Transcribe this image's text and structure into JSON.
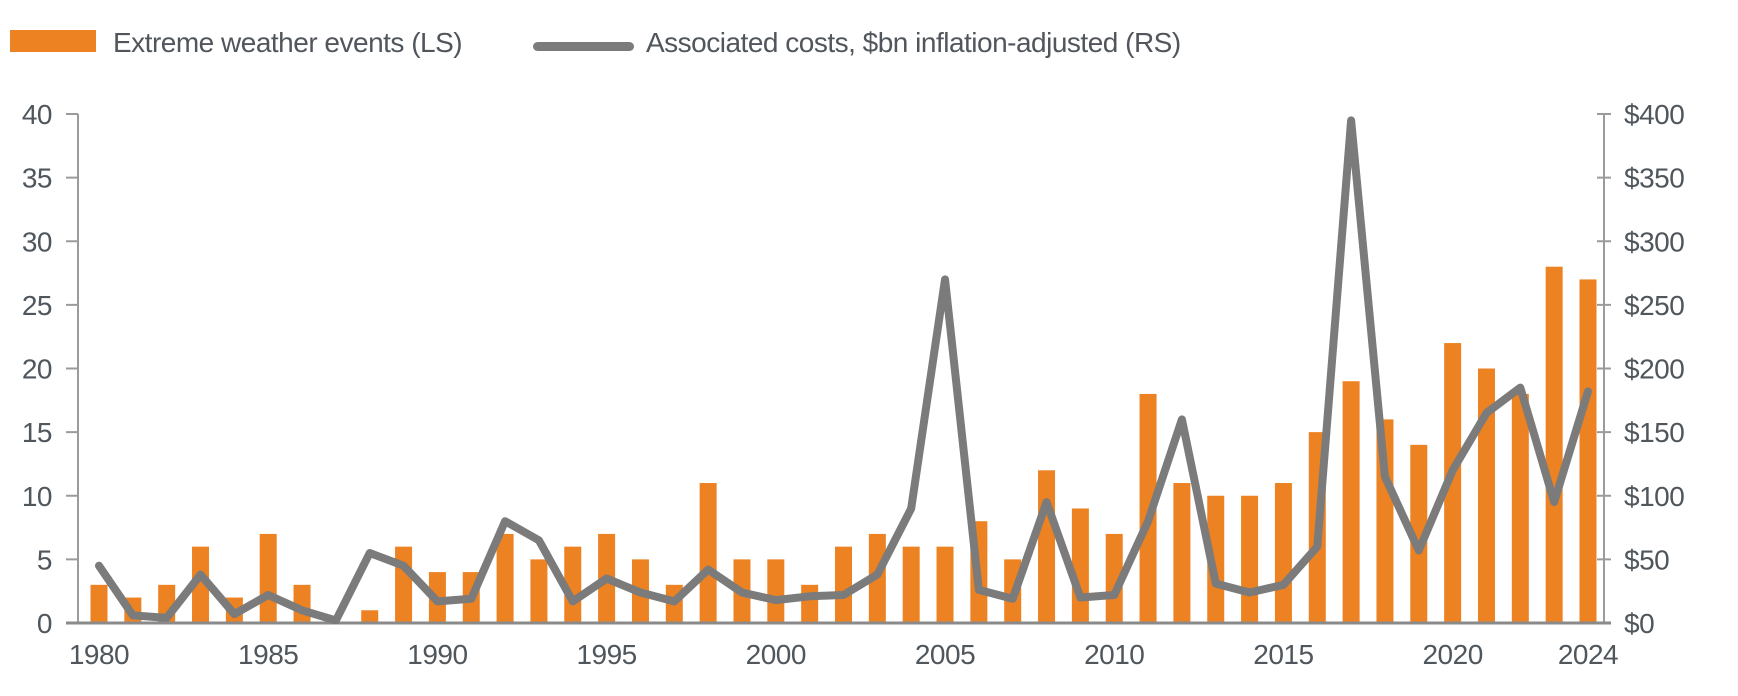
{
  "legend": {
    "events_label": "Extreme weather events (LS)",
    "costs_label": "Associated costs, $bn inflation-adjusted (RS)"
  },
  "colors": {
    "bar": "#ED8222",
    "line": "#7B7B7B",
    "axis": "#9B9B9B",
    "baseline": "#8A8A8A",
    "tick_text": "#4F565C"
  },
  "chart_data": {
    "type": "combo-bar-line",
    "x": [
      1980,
      1981,
      1982,
      1983,
      1984,
      1985,
      1986,
      1987,
      1988,
      1989,
      1990,
      1991,
      1992,
      1993,
      1994,
      1995,
      1996,
      1997,
      1998,
      1999,
      2000,
      2001,
      2002,
      2003,
      2004,
      2005,
      2006,
      2007,
      2008,
      2009,
      2010,
      2011,
      2012,
      2013,
      2014,
      2015,
      2016,
      2017,
      2018,
      2019,
      2020,
      2021,
      2022,
      2023,
      2024
    ],
    "series": [
      {
        "name": "Extreme weather events (LS)",
        "type": "bar",
        "axis": "left",
        "values": [
          3,
          2,
          3,
          6,
          2,
          7,
          3,
          0,
          1,
          6,
          4,
          4,
          7,
          5,
          6,
          7,
          5,
          3,
          11,
          5,
          5,
          3,
          6,
          7,
          6,
          6,
          8,
          5,
          12,
          9,
          7,
          18,
          11,
          10,
          10,
          11,
          15,
          19,
          16,
          14,
          22,
          20,
          18,
          28,
          27
        ]
      },
      {
        "name": "Associated costs, $bn inflation-adjusted (RS)",
        "type": "line",
        "axis": "right",
        "values": [
          45,
          6,
          4,
          38,
          7,
          22,
          10,
          2,
          55,
          45,
          17,
          19,
          80,
          65,
          17,
          35,
          24,
          17,
          42,
          24,
          18,
          21,
          22,
          38,
          90,
          270,
          26,
          19,
          95,
          20,
          22,
          80,
          160,
          31,
          24,
          30,
          60,
          395,
          115,
          57,
          120,
          165,
          185,
          95,
          182
        ]
      }
    ],
    "left_axis": {
      "range": [
        0,
        40
      ],
      "ticks": [
        0,
        5,
        10,
        15,
        20,
        25,
        30,
        35,
        40
      ]
    },
    "right_axis": {
      "range": [
        0,
        400
      ],
      "tick_values": [
        0,
        50,
        100,
        150,
        200,
        250,
        300,
        350,
        400
      ],
      "tick_labels": [
        "$0",
        "$50",
        "$100",
        "$150",
        "$200",
        "$250",
        "$300",
        "$350",
        "$400"
      ]
    },
    "x_tick_labels": [
      1980,
      1985,
      1990,
      1995,
      2000,
      2005,
      2010,
      2015,
      2020,
      2024
    ],
    "grid": false,
    "legend_position": "top-left"
  }
}
